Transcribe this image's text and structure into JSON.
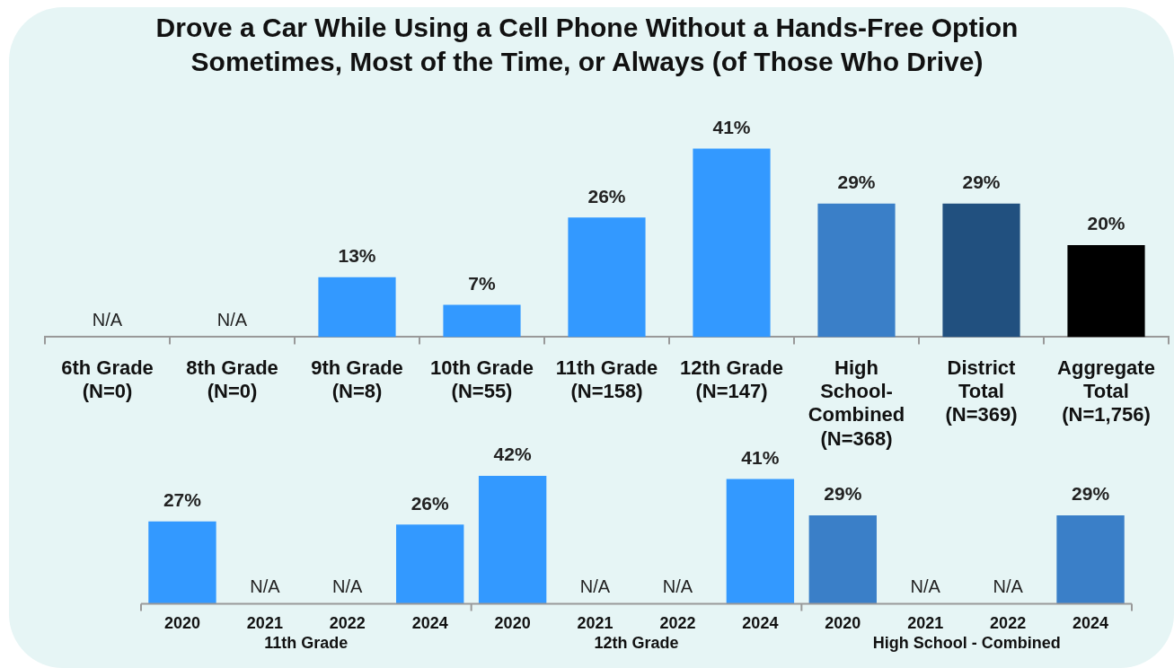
{
  "chart_data": [
    {
      "type": "bar",
      "title": "Drove a Car While Using a Cell Phone Without a Hands-Free Option Sometimes, Most of the Time, or Always (of Those Who Drive)",
      "categories": [
        "6th Grade\n(N=0)",
        "8th Grade\n(N=0)",
        "9th Grade\n(N=8)",
        "10th Grade\n(N=55)",
        "11th Grade\n(N=158)",
        "12th Grade\n(N=147)",
        "High\nSchool-\nCombined\n(N=368)",
        "District\nTotal\n(N=369)",
        "Aggregate\nTotal\n(N=1,756)"
      ],
      "values": [
        null,
        null,
        13,
        7,
        26,
        41,
        29,
        29,
        20
      ],
      "value_labels": [
        "N/A",
        "N/A",
        "13%",
        "7%",
        "26%",
        "41%",
        "29%",
        "29%",
        "20%"
      ],
      "colors": [
        "#3399ff",
        "#3399ff",
        "#3399ff",
        "#3399ff",
        "#3399ff",
        "#3399ff",
        "#3a7fc8",
        "#21507f",
        "#000000"
      ]
    },
    {
      "type": "bar",
      "categories": [
        "2020",
        "2021",
        "2022",
        "2024",
        "2020",
        "2021",
        "2022",
        "2024",
        "2020",
        "2021",
        "2022",
        "2024"
      ],
      "values": [
        27,
        null,
        null,
        26,
        42,
        null,
        null,
        41,
        29,
        null,
        null,
        29
      ],
      "value_labels": [
        "27%",
        "N/A",
        "N/A",
        "26%",
        "42%",
        "N/A",
        "N/A",
        "41%",
        "29%",
        "N/A",
        "N/A",
        "29%"
      ],
      "colors": [
        "#3399ff",
        "#3399ff",
        "#3399ff",
        "#3399ff",
        "#3399ff",
        "#3399ff",
        "#3399ff",
        "#3399ff",
        "#3a7fc8",
        "#3a7fc8",
        "#3a7fc8",
        "#3a7fc8"
      ],
      "annotations": [
        "11th Grade",
        "12th Grade",
        "High School - Combined"
      ]
    }
  ]
}
